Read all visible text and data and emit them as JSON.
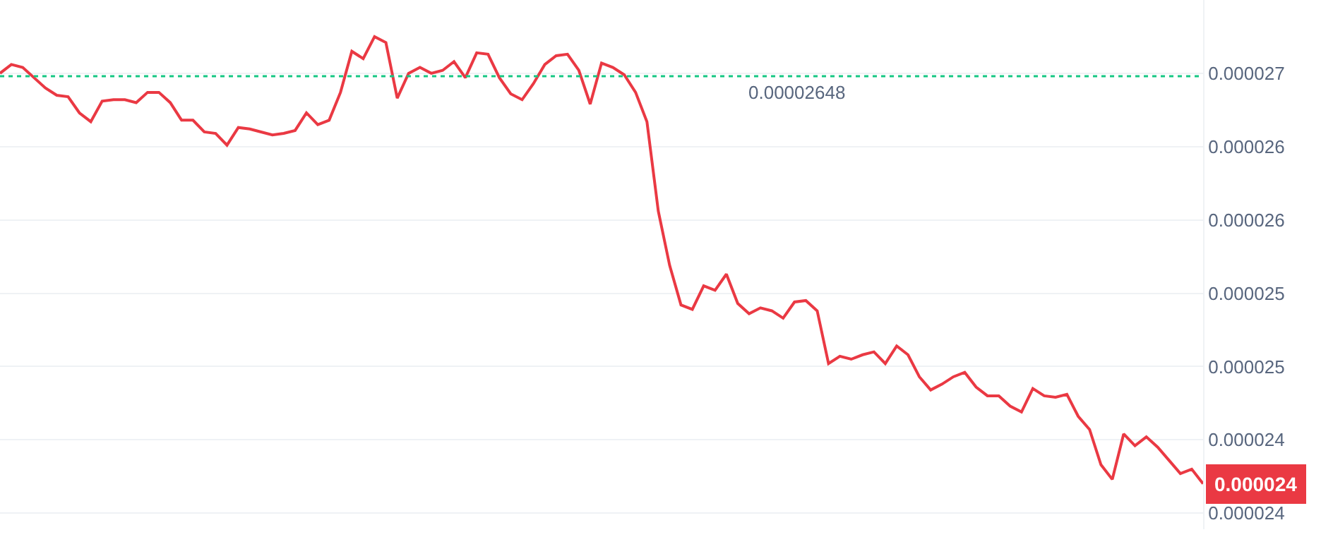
{
  "chart_data": {
    "type": "line",
    "categories": [
      null,
      null,
      null,
      null,
      null,
      null,
      null,
      null,
      null,
      null,
      null,
      null,
      null,
      null,
      null,
      null,
      null,
      null,
      null,
      null,
      null,
      null,
      null,
      null,
      null,
      null,
      null,
      null,
      null,
      null,
      null,
      null,
      null,
      null,
      null,
      null,
      null,
      null,
      null,
      null,
      null,
      null,
      null,
      null,
      null,
      null,
      null,
      null,
      null,
      null,
      null,
      null,
      null,
      null,
      null,
      null,
      null,
      null,
      null,
      null,
      null,
      null,
      null,
      null,
      null,
      null,
      null,
      null,
      null,
      null,
      null,
      null,
      null,
      null,
      null,
      null,
      null,
      null,
      null,
      null,
      null,
      null,
      null,
      null,
      null,
      null,
      null,
      null,
      null,
      null,
      null,
      null,
      null,
      null,
      null,
      null,
      null,
      null,
      null,
      null,
      null,
      null,
      null,
      null,
      null,
      null,
      null
    ],
    "series": [
      {
        "color": "#ea3943",
        "values": [
          2.65e-05,
          2.656e-05,
          2.654e-05,
          2.647e-05,
          2.64e-05,
          2.635e-05,
          2.634e-05,
          2.623e-05,
          2.617e-05,
          2.631e-05,
          2.632e-05,
          2.632e-05,
          2.63e-05,
          2.637e-05,
          2.637e-05,
          2.63e-05,
          2.618e-05,
          2.618e-05,
          2.61e-05,
          2.609e-05,
          2.601e-05,
          2.613e-05,
          2.612e-05,
          2.61e-05,
          2.608e-05,
          2.609e-05,
          2.611e-05,
          2.623e-05,
          2.615e-05,
          2.618e-05,
          2.637e-05,
          2.665e-05,
          2.66e-05,
          2.675e-05,
          2.671e-05,
          2.633e-05,
          2.65e-05,
          2.654e-05,
          2.65e-05,
          2.652e-05,
          2.658e-05,
          2.647e-05,
          2.664e-05,
          2.663e-05,
          2.647e-05,
          2.636e-05,
          2.632e-05,
          2.643e-05,
          2.656e-05,
          2.662e-05,
          2.663e-05,
          2.652e-05,
          2.629e-05,
          2.657e-05,
          2.654e-05,
          2.649e-05,
          2.637e-05,
          2.617e-05,
          2.556e-05,
          2.519e-05,
          2.492e-05,
          2.489e-05,
          2.505e-05,
          2.502e-05,
          2.513e-05,
          2.493e-05,
          2.486e-05,
          2.49e-05,
          2.488e-05,
          2.483e-05,
          2.494e-05,
          2.495e-05,
          2.488e-05,
          2.452e-05,
          2.457e-05,
          2.455e-05,
          2.458e-05,
          2.46e-05,
          2.452e-05,
          2.464e-05,
          2.458e-05,
          2.443e-05,
          2.434e-05,
          2.438e-05,
          2.443e-05,
          2.446e-05,
          2.436e-05,
          2.43e-05,
          2.43e-05,
          2.423e-05,
          2.419e-05,
          2.435e-05,
          2.43e-05,
          2.429e-05,
          2.431e-05,
          2.416e-05,
          2.407e-05,
          2.383e-05,
          2.373e-05,
          2.404e-05,
          2.396e-05,
          2.402e-05,
          2.395e-05,
          2.386e-05,
          2.377e-05,
          2.38e-05,
          2.37e-05
        ]
      }
    ],
    "ylim": [
      2.339e-05,
      2.7e-05
    ],
    "yticks": [
      {
        "value": 2.65e-05,
        "label": "0.000027"
      },
      {
        "value": 2.6e-05,
        "label": "0.000026"
      },
      {
        "value": 2.55e-05,
        "label": "0.000026"
      },
      {
        "value": 2.5e-05,
        "label": "0.000025"
      },
      {
        "value": 2.45e-05,
        "label": "0.000025"
      },
      {
        "value": 2.4e-05,
        "label": "0.000024"
      },
      {
        "value": 2.35e-05,
        "label": "0.000024"
      }
    ],
    "tick_labels": "y",
    "grid": "y",
    "marker": "none",
    "line_style": "solid",
    "ref_lines": [
      {
        "axis": "y",
        "value": 2.648e-05,
        "label": "0.00002648",
        "color": "#16c784",
        "line_style": "dotted"
      }
    ],
    "annotations": [
      "0.000024"
    ]
  }
}
